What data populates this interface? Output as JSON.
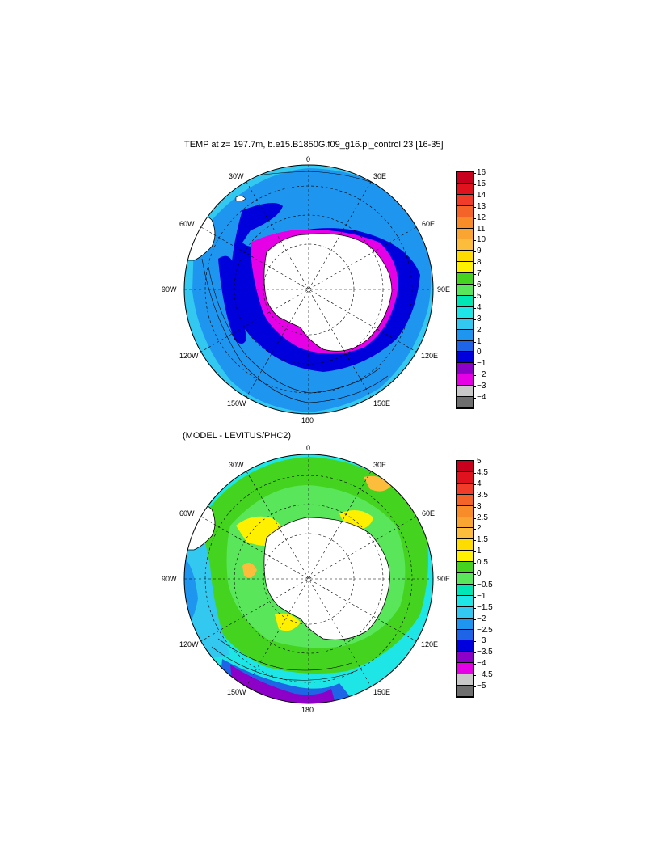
{
  "panels": [
    {
      "title": "TEMP at z= 197.7m, b.e15.B1850G.f09_g16.pi_control.23 [16-35]",
      "lon_labels": [
        "0",
        "30E",
        "60E",
        "90E",
        "120E",
        "150E",
        "180",
        "150W",
        "120W",
        "90W",
        "60W",
        "30W"
      ],
      "colorbar": {
        "labels": [
          "16",
          "15",
          "14",
          "13",
          "12",
          "11",
          "10",
          "9",
          "8",
          "7",
          "6",
          "5",
          "4",
          "3",
          "2",
          "1",
          "0",
          "−1",
          "−2",
          "−3",
          "−4"
        ],
        "colors": [
          "#c8001e",
          "#e0121e",
          "#f03c28",
          "#f46428",
          "#f88c28",
          "#faa432",
          "#fcbc3c",
          "#ffdc00",
          "#fff000",
          "#44d420",
          "#5ae65a",
          "#00e6b4",
          "#1ee6e6",
          "#32c8f0",
          "#1e96f0",
          "#1e64e6",
          "#0000dc",
          "#8c00c8",
          "#e600e6",
          "#c8c8c8",
          "#6e6e6e"
        ]
      }
    },
    {
      "title": "(MODEL - LEVITUS/PHC2)",
      "lon_labels": [
        "0",
        "30E",
        "60E",
        "90E",
        "120E",
        "150E",
        "180",
        "150W",
        "120W",
        "90W",
        "60W",
        "30W"
      ],
      "colorbar": {
        "labels": [
          "5",
          "4.5",
          "4",
          "3.5",
          "3",
          "2.5",
          "2",
          "1.5",
          "1",
          "0.5",
          "0",
          "−0.5",
          "−1",
          "−1.5",
          "−2",
          "−2.5",
          "−3",
          "−3.5",
          "−4",
          "−4.5",
          "−5"
        ],
        "colors": [
          "#c8001e",
          "#e0121e",
          "#f03c28",
          "#f46428",
          "#f88c28",
          "#faa432",
          "#fcbc3c",
          "#ffdc00",
          "#fff000",
          "#44d420",
          "#5ae65a",
          "#00e6b4",
          "#1ee6e6",
          "#32c8f0",
          "#1e96f0",
          "#1e64e6",
          "#0000dc",
          "#8c00c8",
          "#e600e6",
          "#c8c8c8",
          "#6e6e6e"
        ]
      }
    }
  ]
}
